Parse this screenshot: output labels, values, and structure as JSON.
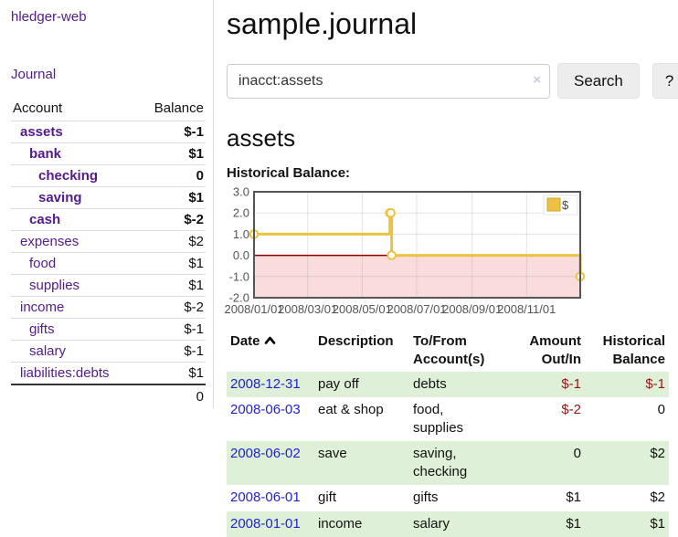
{
  "app": {
    "brand": "hledger-web"
  },
  "sidebar": {
    "journal_link": "Journal",
    "accounts": {
      "col_account": "Account",
      "col_balance": "Balance",
      "rows": [
        {
          "name": "assets",
          "balance": "$-1",
          "depth": 1,
          "bold": true,
          "neg": "strong"
        },
        {
          "name": "bank",
          "balance": "$1",
          "depth": 2,
          "bold": true,
          "neg": "none"
        },
        {
          "name": "checking",
          "balance": "0",
          "depth": 3,
          "bold": true,
          "neg": "none"
        },
        {
          "name": "saving",
          "balance": "$1",
          "depth": 3,
          "bold": true,
          "neg": "none"
        },
        {
          "name": "cash",
          "balance": "$-2",
          "depth": 2,
          "bold": true,
          "neg": "strong"
        },
        {
          "name": "expenses",
          "balance": "$2",
          "depth": 1,
          "bold": false,
          "neg": "none"
        },
        {
          "name": "food",
          "balance": "$1",
          "depth": 2,
          "bold": false,
          "neg": "none"
        },
        {
          "name": "supplies",
          "balance": "$1",
          "depth": 2,
          "bold": false,
          "neg": "none"
        },
        {
          "name": "income",
          "balance": "$-2",
          "depth": 1,
          "bold": false,
          "neg": "muted"
        },
        {
          "name": "gifts",
          "balance": "$-1",
          "depth": 2,
          "bold": false,
          "neg": "muted"
        },
        {
          "name": "salary",
          "balance": "$-1",
          "depth": 2,
          "bold": false,
          "neg": "muted",
          "blue": true
        },
        {
          "name": "liabilities:debts",
          "balance": "$1",
          "depth": 1,
          "bold": false,
          "neg": "none"
        }
      ],
      "total": "0"
    }
  },
  "main": {
    "title": "sample.journal",
    "search": {
      "value": "inacct:assets",
      "clear_icon": "×",
      "button": "Search",
      "help": "?"
    },
    "heading": "assets",
    "chart_title": "Historical Balance:"
  },
  "chart_data": {
    "type": "line",
    "style": "steps",
    "title": "Historical Balance",
    "legend": "$",
    "legend_position": "top-right",
    "line_color": "#edc240",
    "negative_region_color": "#fadcdc",
    "zero_line_color": "#8b0000",
    "axis_text_color": "#545454",
    "x_range": [
      "2008-01-01",
      "2008-12-31"
    ],
    "ylim": [
      -2,
      3
    ],
    "y_ticks": [
      {
        "value": 3,
        "label": "3.0"
      },
      {
        "value": 2,
        "label": "2.0"
      },
      {
        "value": 1,
        "label": "1.0"
      },
      {
        "value": 0,
        "label": "0.0"
      },
      {
        "value": -1,
        "label": "-1.0"
      },
      {
        "value": -2,
        "label": "-2.0"
      }
    ],
    "x_ticks": [
      {
        "date": "2008-01-01",
        "label": "2008/01/01"
      },
      {
        "date": "2008-03-01",
        "label": "2008/03/01"
      },
      {
        "date": "2008-05-01",
        "label": "2008/05/01"
      },
      {
        "date": "2008-07-01",
        "label": "2008/07/01"
      },
      {
        "date": "2008-09-01",
        "label": "2008/09/01"
      },
      {
        "date": "2008-11-01",
        "label": "2008/11/01"
      }
    ],
    "series": [
      {
        "name": "$",
        "points": [
          {
            "date": "2008-01-01",
            "value": 1
          },
          {
            "date": "2008-06-01",
            "value": 2
          },
          {
            "date": "2008-06-02",
            "value": 2
          },
          {
            "date": "2008-06-03",
            "value": 0
          },
          {
            "date": "2008-12-31",
            "value": -1
          }
        ]
      }
    ]
  },
  "register": {
    "headers": {
      "date": "Date",
      "description": "Description",
      "account_line1": "To/From",
      "account_line2": "Account(s)",
      "amount_line1": "Amount",
      "amount_line2": "Out/In",
      "balance_line1": "Historical",
      "balance_line2": "Balance"
    },
    "rows": [
      {
        "date": "2008-12-31",
        "description": "pay off",
        "accounts": "debts",
        "amount": "$-1",
        "balance": "$-1",
        "amount_neg": true,
        "balance_neg": true
      },
      {
        "date": "2008-06-03",
        "description": "eat & shop",
        "accounts": "food, supplies",
        "amount": "$-2",
        "balance": "0",
        "amount_neg": true,
        "balance_neg": false
      },
      {
        "date": "2008-06-02",
        "description": "save",
        "accounts": "saving, checking",
        "amount": "0",
        "balance": "$2",
        "amount_neg": false,
        "balance_neg": false
      },
      {
        "date": "2008-06-01",
        "description": "gift",
        "accounts": "gifts",
        "amount": "$1",
        "balance": "$2",
        "amount_neg": false,
        "balance_neg": false
      },
      {
        "date": "2008-01-01",
        "description": "income",
        "accounts": "salary",
        "amount": "$1",
        "balance": "$1",
        "amount_neg": false,
        "balance_neg": false
      }
    ]
  }
}
